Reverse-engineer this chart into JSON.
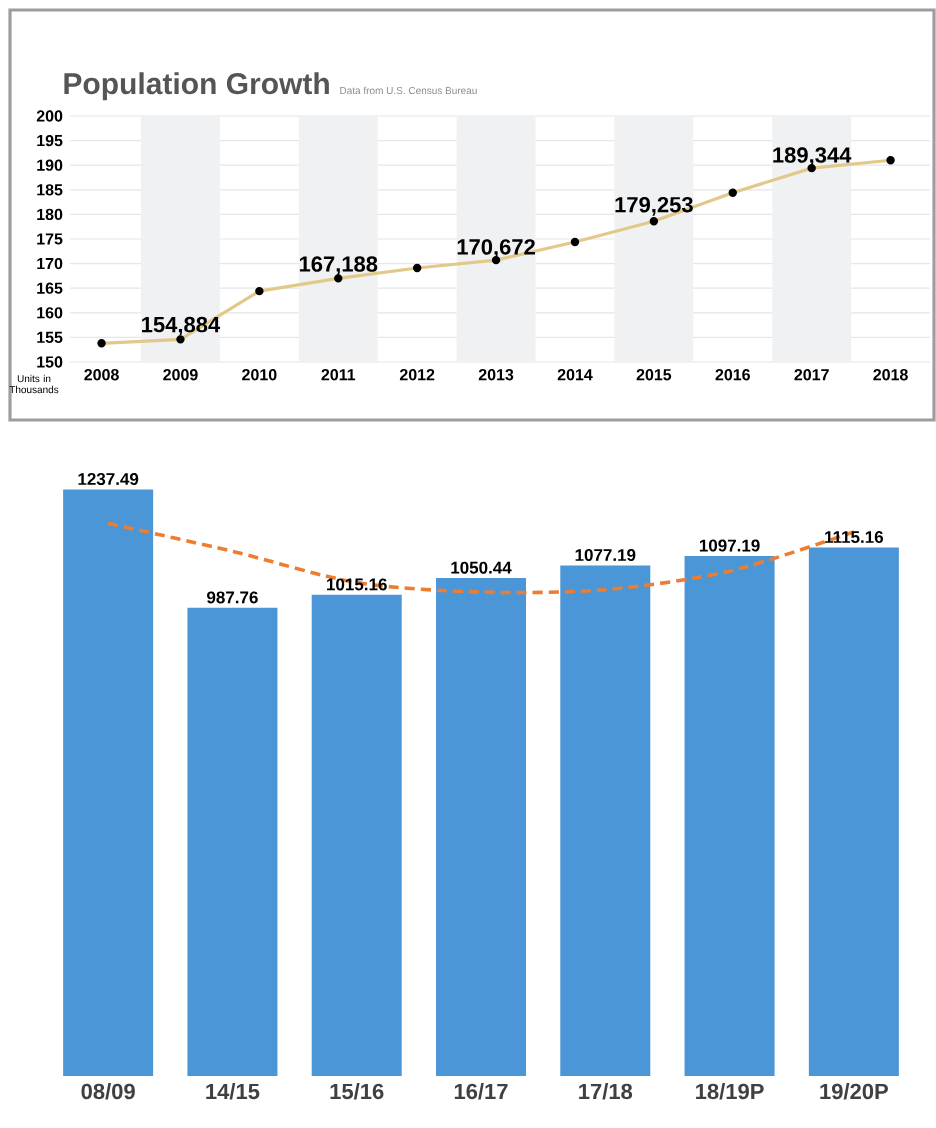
{
  "chart_data": [
    {
      "type": "line",
      "title": "Population Growth",
      "subtitle": "Data from U.S. Census Bureau",
      "annotations": [
        "Units in Thousands",
        {
          "text": "154,884",
          "x": 2009,
          "y": 154.884
        },
        {
          "text": "167,188",
          "x": 2011,
          "y": 167.188
        },
        {
          "text": "170,672",
          "x": 2013,
          "y": 170.672
        },
        {
          "text": "179,253",
          "x": 2015,
          "y": 179.253
        },
        {
          "text": "189,344",
          "x": 2017,
          "y": 189.344
        }
      ],
      "series": [
        {
          "color": "#e2c98a",
          "x": [
            2008,
            2009,
            2010,
            2011,
            2012,
            2013,
            2014,
            2015,
            2016,
            2017,
            2018
          ],
          "values": [
            153.8,
            154.6,
            164.4,
            167.0,
            169.1,
            170.7,
            174.4,
            178.6,
            184.4,
            189.4,
            191.0
          ]
        }
      ],
      "marker": "circle",
      "grid": "y",
      "bands": [
        {
          "axis": "x",
          "from": 2008.5,
          "to": 2009.5,
          "color": "#f0f1f3"
        },
        {
          "axis": "x",
          "from": 2010.5,
          "to": 2011.5,
          "color": "#f0f1f3"
        },
        {
          "axis": "x",
          "from": 2012.5,
          "to": 2013.5,
          "color": "#f0f1f3"
        },
        {
          "axis": "x",
          "from": 2014.5,
          "to": 2015.5,
          "color": "#f0f1f3"
        },
        {
          "axis": "x",
          "from": 2016.5,
          "to": 2017.5,
          "color": "#f0f1f3"
        }
      ],
      "xlim": [
        2007.6,
        2018.5
      ],
      "xticks": [
        2008,
        2009,
        2010,
        2011,
        2012,
        2013,
        2014,
        2015,
        2016,
        2017,
        2018
      ],
      "ylim": [
        150,
        200
      ],
      "yticks": [
        150,
        155,
        160,
        165,
        170,
        175,
        180,
        185,
        190,
        195,
        200
      ]
    },
    {
      "type": "bar",
      "categories": [
        "08/09",
        "14/15",
        "15/16",
        "16/17",
        "17/18",
        "18/19P",
        "19/20P"
      ],
      "series": [
        {
          "color": "#4a96d6",
          "values": [
            1237.49,
            987.76,
            1015.16,
            1050.44,
            1077.19,
            1097.19,
            1115.16
          ],
          "value_labels": [
            "1237.49",
            "987.76",
            "1015.16",
            "1050.44",
            "1077.19",
            "1097.19",
            "1115.16"
          ]
        },
        {
          "type": "line",
          "color": "#ed7d31",
          "line_style": "dashed",
          "values": [
            1166,
            1107,
            1041,
            1021,
            1026,
            1065,
            1148
          ]
        }
      ],
      "tick_labels": "x"
    }
  ]
}
